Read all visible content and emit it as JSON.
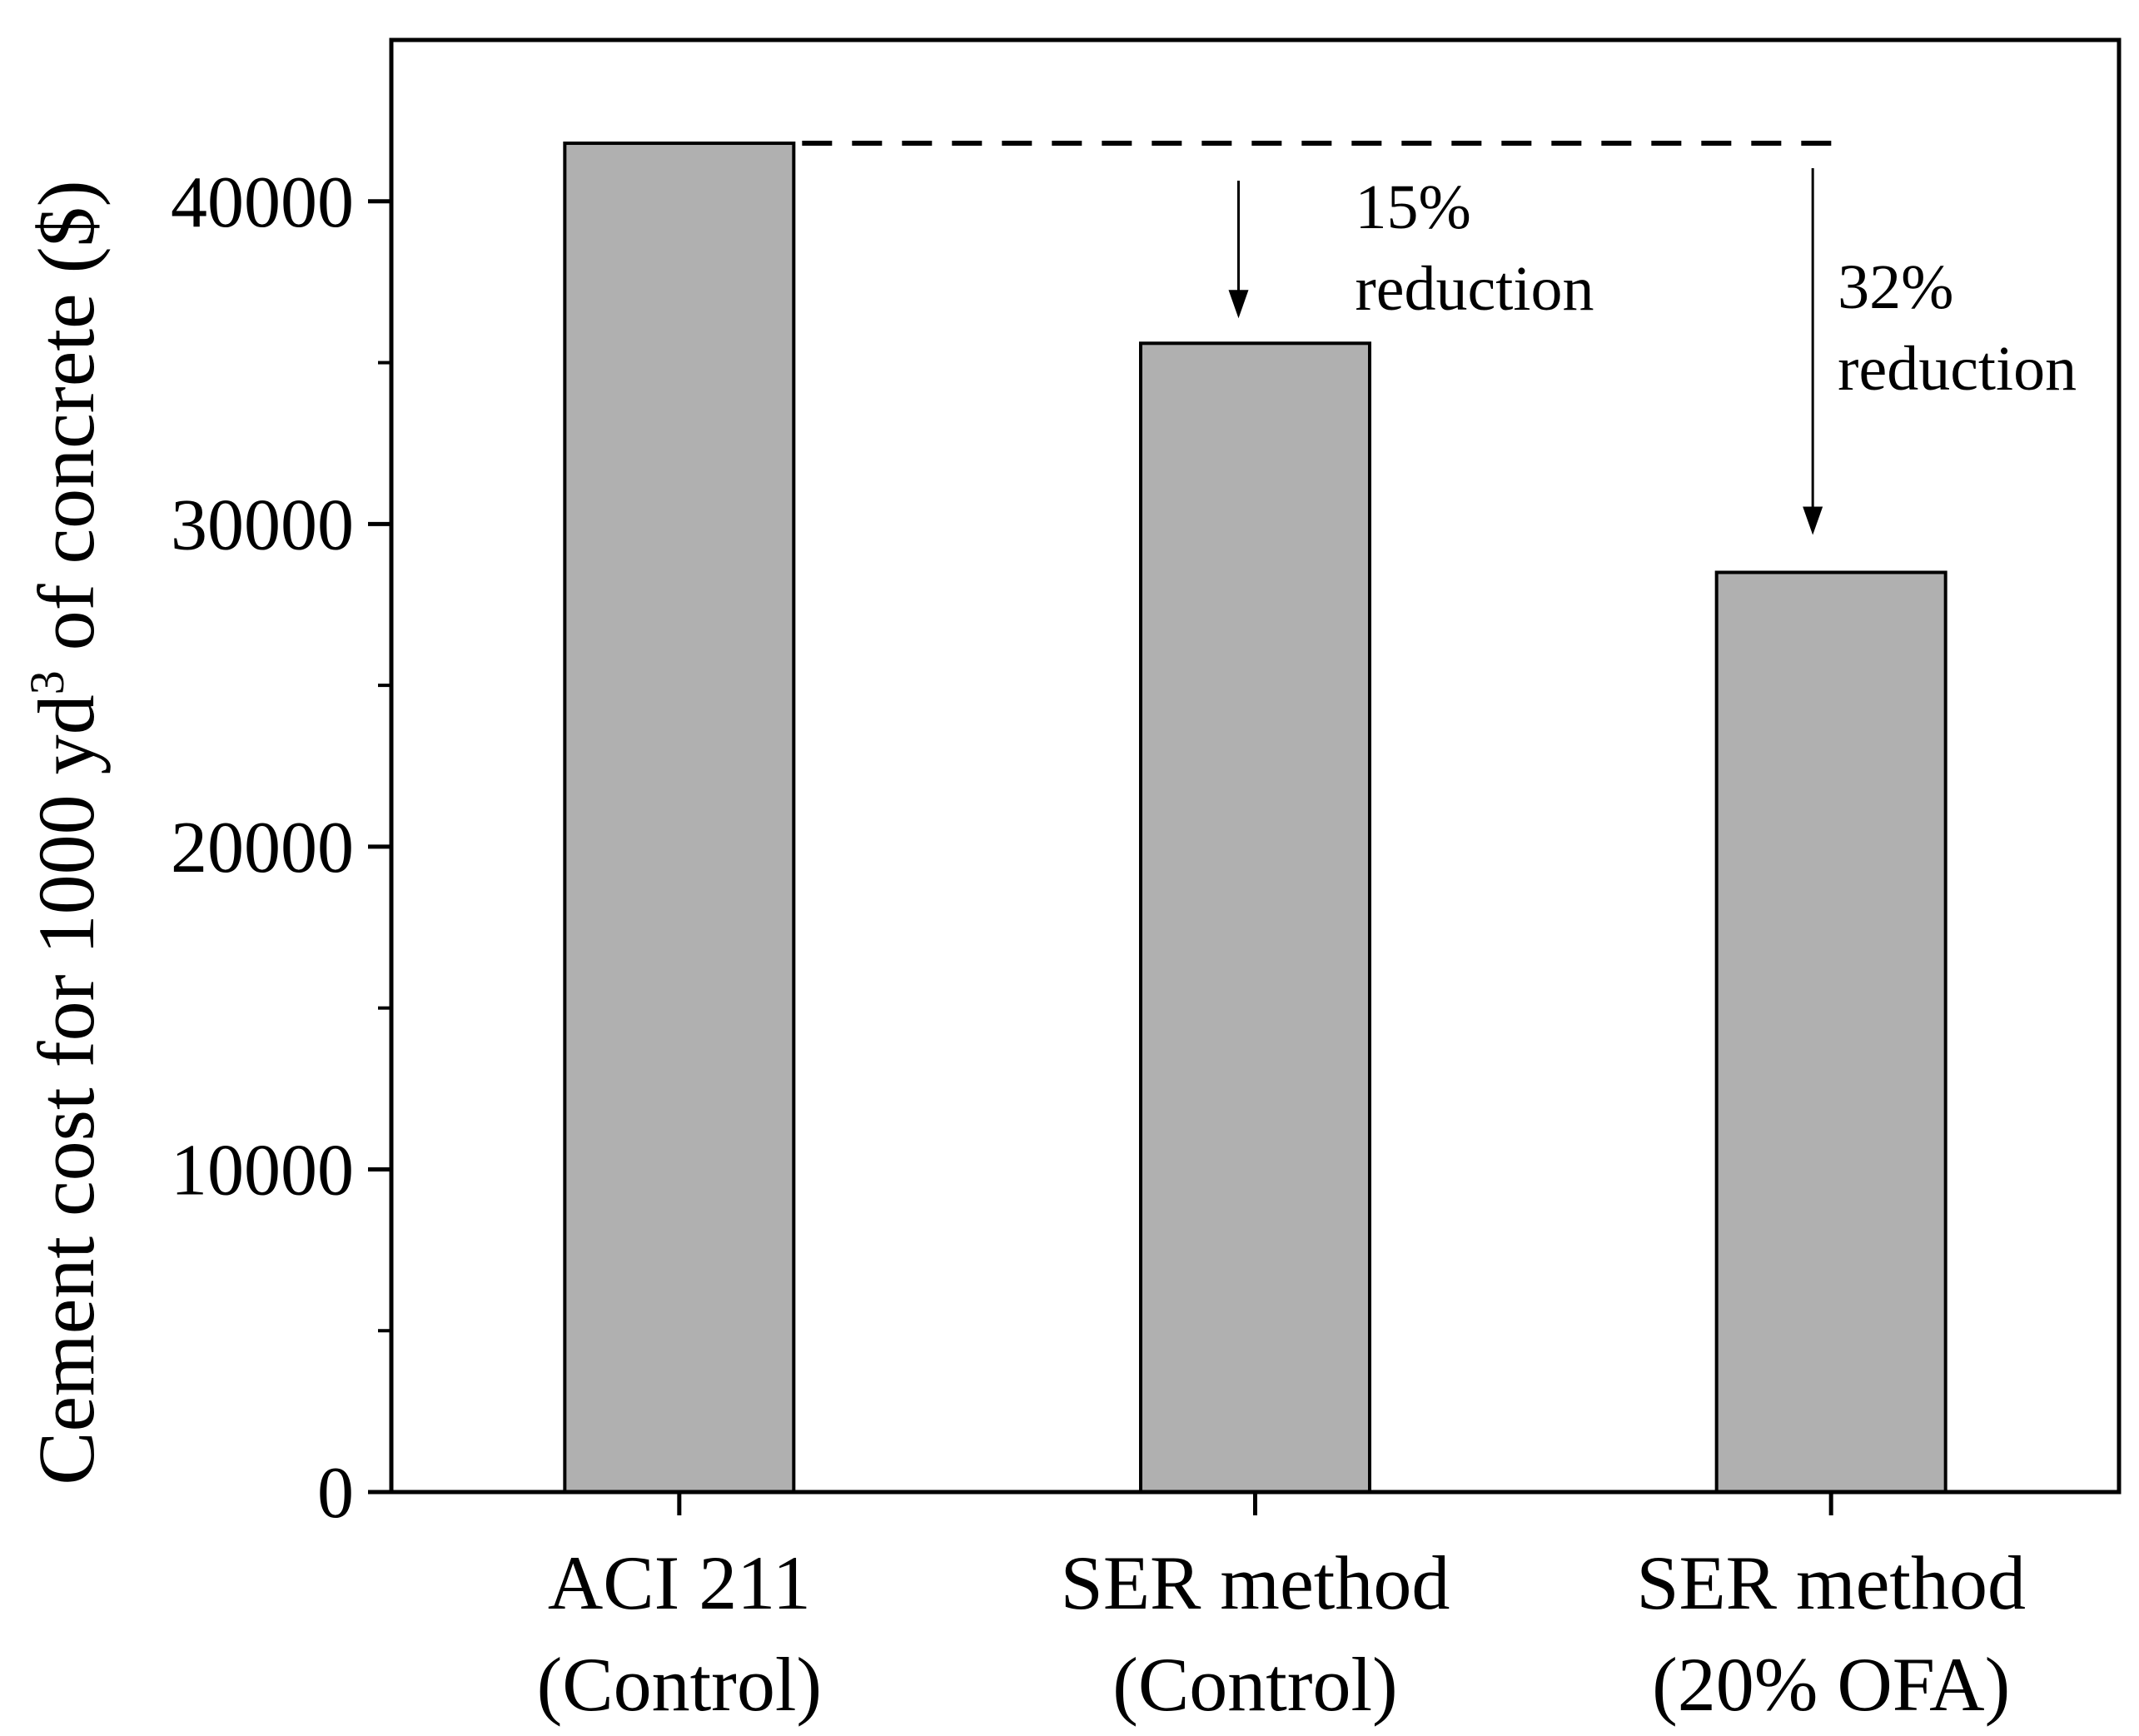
{
  "chart_data": {
    "type": "bar",
    "title": "",
    "xlabel": "",
    "ylabel": {
      "prefix": "Cement cost for 1000 yd",
      "superscript": "3",
      "suffix": " of concrete ($)"
    },
    "ylim": [
      0,
      45000
    ],
    "yticks": [
      0,
      10000,
      20000,
      30000,
      40000
    ],
    "yminor_ticks": [
      5000,
      15000,
      25000,
      35000
    ],
    "categories": [
      {
        "line1": "ACI 211",
        "line2": "(Control)"
      },
      {
        "line1": "SER method",
        "line2": "(Control)"
      },
      {
        "line1": "SER method",
        "line2": "(20% OFA)"
      }
    ],
    "values": [
      41800,
      35600,
      28500
    ],
    "bar_color": "#b0b0b0",
    "grid": false,
    "annotations": [
      {
        "line1": "15%",
        "line2": "reduction",
        "target_index": 1
      },
      {
        "line1": "32%",
        "line2": "reduction",
        "target_index": 2
      }
    ]
  }
}
